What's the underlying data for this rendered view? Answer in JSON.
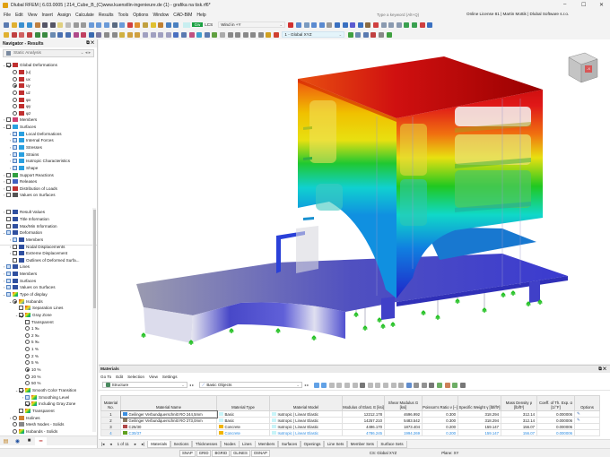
{
  "window": {
    "title": "Dlubal RFEM | 6.03.0005 | 214_Cube_B_(C)www.kuenstlin-ingenieure.de (1) - grafika na tisk.rf6*",
    "minimize": "–",
    "maximize": "☐",
    "close": "✕"
  },
  "menu": [
    "File",
    "Edit",
    "View",
    "Insert",
    "Assign",
    "Calculate",
    "Results",
    "Tools",
    "Options",
    "Window",
    "CAD-BIM",
    "Help"
  ],
  "search": {
    "placeholder": "Type a keyword (Alt+Q)"
  },
  "license": "Online License 81 | Martin Mottik | Dlubal Software s.r.o.",
  "toolbar": {
    "load_badge": "Gw",
    "lcs": "LCS",
    "load_case": "Wind in +Y",
    "coordinate_system": "1 - Global XYZ"
  },
  "navigator": {
    "title": "Navigator - Results",
    "analysis": "Static Analysis",
    "tree1": [
      {
        "label": "Global Deformations",
        "level": 0,
        "ctl": "check",
        "on": true,
        "exp": "open",
        "icon": "deformation-icon"
      },
      {
        "label": "|u|",
        "level": 1,
        "ctl": "radio",
        "on": false,
        "icon": "deformation-icon"
      },
      {
        "label": "ux",
        "level": 1,
        "ctl": "radio",
        "on": false,
        "icon": "deformation-icon"
      },
      {
        "label": "uy",
        "level": 1,
        "ctl": "radio",
        "on": true,
        "icon": "deformation-icon"
      },
      {
        "label": "uz",
        "level": 1,
        "ctl": "radio",
        "on": false,
        "icon": "deformation-icon"
      },
      {
        "label": "φx",
        "level": 1,
        "ctl": "radio",
        "on": false,
        "icon": "deformation-icon"
      },
      {
        "label": "φy",
        "level": 1,
        "ctl": "radio",
        "on": false,
        "icon": "deformation-icon"
      },
      {
        "label": "φz",
        "level": 1,
        "ctl": "radio",
        "on": false,
        "icon": "deformation-icon"
      },
      {
        "label": "Members",
        "level": 0,
        "ctl": "check",
        "on": false,
        "exp": "closed",
        "icon": "members-icon"
      },
      {
        "label": "Surfaces",
        "level": 0,
        "ctl": "check",
        "on": false,
        "exp": "open",
        "icon": "surfaces-icon"
      },
      {
        "label": "Local Deformations",
        "level": 1,
        "ctl": "check",
        "blue": true,
        "exp": "closed",
        "icon": "surfaces-icon"
      },
      {
        "label": "Internal Forces",
        "level": 1,
        "ctl": "check",
        "blue": true,
        "exp": "closed",
        "icon": "surfaces-icon"
      },
      {
        "label": "Stresses",
        "level": 1,
        "ctl": "check",
        "blue": true,
        "exp": "closed",
        "icon": "surfaces-icon"
      },
      {
        "label": "Strains",
        "level": 1,
        "ctl": "check",
        "blue": true,
        "exp": "closed",
        "icon": "surfaces-icon"
      },
      {
        "label": "Isotropic Characteristics",
        "level": 1,
        "ctl": "check",
        "blue": true,
        "exp": "closed",
        "icon": "surfaces-icon"
      },
      {
        "label": "Shape",
        "level": 1,
        "ctl": "check",
        "blue": true,
        "exp": "closed",
        "icon": "surfaces-icon"
      },
      {
        "label": "Support Reactions",
        "level": 0,
        "ctl": "check",
        "on": false,
        "exp": "closed",
        "icon": "support-icon"
      },
      {
        "label": "Releases",
        "level": 0,
        "ctl": "check",
        "on": false,
        "exp": "closed",
        "icon": "release-icon"
      },
      {
        "label": "Distribution of Loads",
        "level": 0,
        "ctl": "check",
        "on": false,
        "exp": "closed",
        "icon": "deformation-icon"
      },
      {
        "label": "Values on Surfaces",
        "level": 0,
        "ctl": "check",
        "on": false,
        "exp": "closed",
        "icon": "flag-icon"
      }
    ],
    "tree2": [
      {
        "label": "Result Values",
        "level": 0,
        "ctl": "check",
        "on": false,
        "exp": "closed",
        "icon": "display-icon"
      },
      {
        "label": "Title Information",
        "level": 0,
        "ctl": "check",
        "on": false,
        "icon": "display-icon"
      },
      {
        "label": "Max/Min Information",
        "level": 0,
        "ctl": "check",
        "on": false,
        "icon": "display-icon"
      },
      {
        "label": "Deformation",
        "level": 0,
        "ctl": "check",
        "blue": true,
        "exp": "open",
        "icon": "display-icon"
      },
      {
        "label": "Members",
        "level": 1,
        "ctl": "check",
        "blue": true,
        "exp": "closed",
        "icon": "display-icon"
      },
      {
        "label": "Nodal Displacements",
        "level": 1,
        "ctl": "check",
        "on": false,
        "exp": "closed",
        "icon": "display-icon"
      },
      {
        "label": "Extreme Displacement",
        "level": 1,
        "ctl": "check",
        "on": false,
        "exp": "closed",
        "icon": "display-icon"
      },
      {
        "label": "Outlines of Deformed Surfa...",
        "level": 1,
        "ctl": "check",
        "on": false,
        "icon": "display-icon"
      },
      {
        "label": "Lines",
        "level": 0,
        "ctl": "check",
        "blue": true,
        "exp": "closed",
        "icon": "display-icon"
      },
      {
        "label": "Members",
        "level": 0,
        "ctl": "check",
        "blue": true,
        "exp": "closed",
        "icon": "display-icon"
      },
      {
        "label": "Surfaces",
        "level": 0,
        "ctl": "check",
        "blue": true,
        "exp": "closed",
        "icon": "display-icon"
      },
      {
        "label": "Values on Surfaces",
        "level": 0,
        "ctl": "check",
        "blue": true,
        "exp": "closed",
        "icon": "display-icon"
      },
      {
        "label": "Type of display",
        "level": 0,
        "ctl": "check",
        "blue": true,
        "exp": "open",
        "icon": "color-scale-icon"
      },
      {
        "label": "Isobands",
        "level": 1,
        "ctl": "radio",
        "on": true,
        "exp": "open",
        "icon": "isobands-icon"
      },
      {
        "label": "Separation Lines",
        "level": 2,
        "ctl": "check",
        "on": false,
        "icon": "isobands-icon"
      },
      {
        "label": "Gray Zone",
        "level": 2,
        "ctl": "check",
        "on": true,
        "exp": "open",
        "icon": "color-scale-icon"
      },
      {
        "label": "Transparent",
        "level": 3,
        "ctl": "check",
        "on": false
      },
      {
        "label": "1 ‰",
        "level": 3,
        "ctl": "radio",
        "on": false
      },
      {
        "label": "2 ‰",
        "level": 3,
        "ctl": "radio",
        "on": false
      },
      {
        "label": "5 ‰",
        "level": 3,
        "ctl": "radio",
        "on": false
      },
      {
        "label": "1 %",
        "level": 3,
        "ctl": "radio",
        "on": false
      },
      {
        "label": "2 %",
        "level": 3,
        "ctl": "radio",
        "on": false
      },
      {
        "label": "5 %",
        "level": 3,
        "ctl": "radio",
        "on": false
      },
      {
        "label": "10 %",
        "level": 3,
        "ctl": "radio",
        "on": true
      },
      {
        "label": "20 %",
        "level": 3,
        "ctl": "radio",
        "on": false
      },
      {
        "label": "50 %",
        "level": 3,
        "ctl": "radio",
        "on": false
      },
      {
        "label": "Smooth Color Transition",
        "level": 2,
        "ctl": "check",
        "on": true,
        "exp": "open",
        "icon": "color-scale-icon"
      },
      {
        "label": "Smoothing Level",
        "level": 3,
        "ctl": "check",
        "blue": true,
        "exp": "closed",
        "icon": "color-scale-icon"
      },
      {
        "label": "Including Gray Zone",
        "level": 3,
        "ctl": "check",
        "on": true,
        "icon": "color-scale-icon"
      },
      {
        "label": "Transparent",
        "level": 2,
        "ctl": "check",
        "on": false,
        "icon": "color-scale-icon"
      },
      {
        "label": "Isolines",
        "level": 1,
        "ctl": "radio",
        "on": false,
        "exp": "closed",
        "icon": "isolines-icon"
      },
      {
        "label": "Mesh Nodes - Solids",
        "level": 1,
        "ctl": "radio",
        "on": false,
        "icon": "mesh-icon"
      },
      {
        "label": "Isobands - Solids",
        "level": 1,
        "ctl": "radio",
        "on": false,
        "icon": "color-scale-icon"
      }
    ]
  },
  "materials": {
    "title": "Materials",
    "menu": [
      "Go To",
      "Edit",
      "Selection",
      "View",
      "Settings"
    ],
    "structure_select": "Structure",
    "objects_select": "Basic Objects",
    "columns": [
      "Material No.",
      "Material Name",
      "Material Type",
      "Material Model",
      "Modulus of Elast. E [ksi]",
      "Shear Modulus G [ksi]",
      "Poisson's Ratio ν [–]",
      "Specific Weight γ [lbf/ft³]",
      "Mass Density ρ [lb/ft³]",
      "Coeff. of Th. Exp. α [1/°F]",
      "Options"
    ],
    "rows": [
      {
        "no": "1",
        "name": "Geilinger Verbundquerschnitt RO 244,5mm",
        "color": "#3a8ee0",
        "type": "Basic",
        "type_color": "#c8f4f8",
        "model": "Isotropic | Linear Elastic",
        "E": "12212.178",
        "G": "4696.992",
        "nu": "0.300",
        "gamma": "318.294",
        "rho": "312.14",
        "alpha": "0.000006",
        "options": "✎"
      },
      {
        "no": "2",
        "name": "Geilinger Verbundquerschnitt RO 273,0mm",
        "color": "#8a7a60",
        "type": "Basic",
        "type_color": "#c8f4f8",
        "model": "Isotropic | Linear Elastic",
        "E": "14257.210",
        "G": "5483.542",
        "nu": "0.300",
        "gamma": "318.294",
        "rho": "312.14",
        "alpha": "0.000006",
        "options": "✎"
      },
      {
        "no": "3",
        "name": "C25/30",
        "color": "#b04848",
        "type": "Concrete",
        "type_color": "#f0b400",
        "model": "Isotropic | Linear Elastic",
        "E": "4496.170",
        "G": "1873.404",
        "nu": "0.200",
        "gamma": "159.147",
        "rho": "156.07",
        "alpha": "0.000006",
        "options": ""
      },
      {
        "no": "4",
        "name": "C30/37",
        "color": "#60a020",
        "type": "Concrete",
        "type_color": "#f0b400",
        "model": "Isotropic | Linear Elastic",
        "E": "4786.245",
        "G": "1994.269",
        "nu": "0.200",
        "gamma": "159.147",
        "rho": "156.07",
        "alpha": "0.000006",
        "options": ""
      }
    ],
    "pager": "1 of 11",
    "tabs": [
      "Materials",
      "Sections",
      "Thicknesses",
      "Nodes",
      "Lines",
      "Members",
      "Surfaces",
      "Openings",
      "Line Sets",
      "Member Sets",
      "Surface Sets"
    ],
    "active_tab": "Materials"
  },
  "status": {
    "toggles": [
      "SNAP",
      "GRID",
      "BGRID",
      "GLINES",
      "OSNAP"
    ],
    "cs": "CS: Global XYZ",
    "plane": "Plane: XY"
  },
  "viewcube": {
    "axis_label": "-X"
  },
  "colors": {
    "accent": "#0078d4",
    "badge_green": "#18a040",
    "highlight_blue": "#2a8ae0"
  }
}
